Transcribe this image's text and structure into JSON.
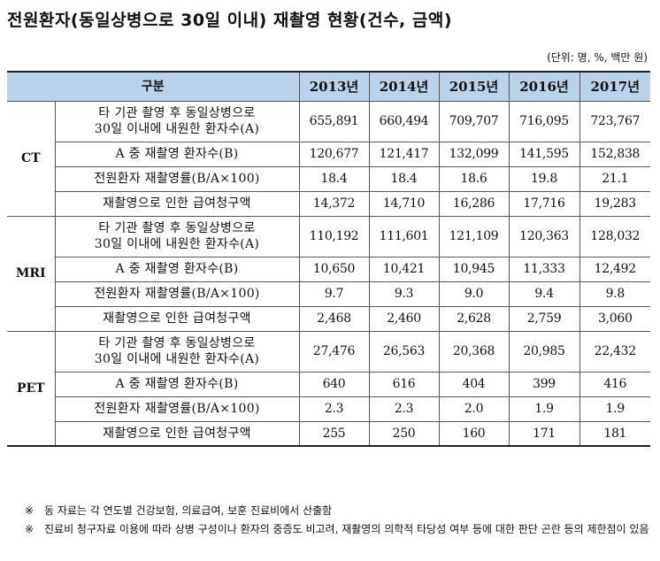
{
  "title": "전원환자(동일상병으로 30일 이내) 재촬영 현황(건수, 금액)",
  "unit": "(단위: 명, %, 백만 원)",
  "header": {
    "category": "구분",
    "years": [
      "2013년",
      "2014년",
      "2015년",
      "2016년",
      "2017년"
    ]
  },
  "groups": [
    {
      "name": "CT",
      "rows": [
        {
          "label_line1": "타 기관 촬영 후 동일상병으로",
          "label_line2": "30일 이내에 내원한 환자수(A)",
          "values": [
            "655,891",
            "660,494",
            "709,707",
            "716,095",
            "723,767"
          ]
        },
        {
          "label": "A 중 재촬영 환자수(B)",
          "values": [
            "120,677",
            "121,417",
            "132,099",
            "141,595",
            "152,838"
          ]
        },
        {
          "label": "전원환자 재촬영률(B/A×100)",
          "values": [
            "18.4",
            "18.4",
            "18.6",
            "19.8",
            "21.1"
          ]
        },
        {
          "label": "재촬영으로 인한 급여청구액",
          "values": [
            "14,372",
            "14,710",
            "16,286",
            "17,716",
            "19,283"
          ]
        }
      ]
    },
    {
      "name": "MRI",
      "rows": [
        {
          "label_line1": "타 기관 촬영 후 동일상병으로",
          "label_line2": "30일 이내에 내원한 환자수(A)",
          "values": [
            "110,192",
            "111,601",
            "121,109",
            "120,363",
            "128,032"
          ]
        },
        {
          "label": "A 중 재촬영 환자수(B)",
          "values": [
            "10,650",
            "10,421",
            "10,945",
            "11,333",
            "12,492"
          ]
        },
        {
          "label": "전원환자 재촬영률(B/A×100)",
          "values": [
            "9.7",
            "9.3",
            "9.0",
            "9.4",
            "9.8"
          ]
        },
        {
          "label": "재촬영으로 인한 급여청구액",
          "values": [
            "2,468",
            "2,460",
            "2,628",
            "2,759",
            "3,060"
          ]
        }
      ]
    },
    {
      "name": "PET",
      "rows": [
        {
          "label_line1": "타 기관 촬영 후 동일상병으로",
          "label_line2": "30일 이내에 내원한 환자수(A)",
          "values": [
            "27,476",
            "26,563",
            "20,368",
            "20,985",
            "22,432"
          ]
        },
        {
          "label": "A 중 재촬영 환자수(B)",
          "values": [
            "640",
            "616",
            "404",
            "399",
            "416"
          ]
        },
        {
          "label": "전원환자 재촬영률(B/A×100)",
          "values": [
            "2.3",
            "2.3",
            "2.0",
            "1.9",
            "1.9"
          ]
        },
        {
          "label": "재촬영으로 인한 급여청구액",
          "values": [
            "255",
            "250",
            "160",
            "171",
            "181"
          ]
        }
      ]
    }
  ],
  "notes": [
    {
      "mark": "※",
      "text": "동 자료는 각 연도별 건강보험, 의료급여, 보훈 진료비에서 산출함"
    },
    {
      "mark": "※",
      "text": "진료비 청구자료 이용에 따라 상병 구성이나 환자의 중증도 비고려, 재촬영의 의학적 타당성 여부 등에 대한 판단 곤란 등의 제한점이 있음"
    }
  ]
}
